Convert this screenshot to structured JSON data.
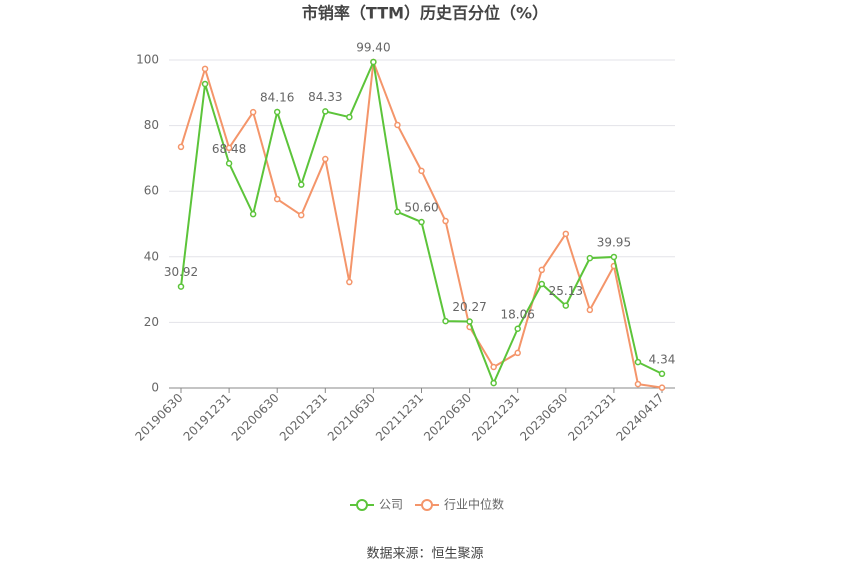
{
  "chart_data": {
    "type": "line",
    "title": "市销率（TTM）历史百分位（%）",
    "categories": [
      "20190630",
      null,
      "20191231",
      null,
      "20200630",
      null,
      "20201231",
      null,
      "20210630",
      null,
      "20211231",
      null,
      "20220630",
      null,
      "20221231",
      null,
      "20230630",
      null,
      "20231231",
      null,
      "20240417"
    ],
    "series": [
      {
        "name": "公司",
        "color": "#5cc43a",
        "values": [
          30.92,
          92.7,
          68.48,
          53,
          84.16,
          62,
          84.33,
          82.6,
          99.4,
          53.7,
          50.6,
          20.4,
          20.27,
          1.5,
          18.06,
          31.7,
          25.13,
          39.6,
          39.95,
          7.9,
          4.34
        ],
        "value_labels": [
          "30.92",
          null,
          "68.48",
          null,
          "84.16",
          null,
          "84.33",
          null,
          "99.40",
          null,
          "50.60",
          null,
          "20.27",
          null,
          "18.06",
          null,
          "25.13",
          null,
          "39.95",
          null,
          "4.34"
        ]
      },
      {
        "name": "行业中位数",
        "color": "#f4956a",
        "values": [
          73.5,
          97.3,
          73.2,
          84.1,
          57.6,
          52.7,
          69.8,
          32.3,
          99.4,
          80.2,
          66.2,
          50.9,
          18.6,
          6.4,
          10.7,
          36,
          47,
          23.8,
          37.2,
          1.2,
          0.1
        ]
      }
    ],
    "ylim": [
      0,
      100
    ],
    "yticks": [
      0,
      20,
      40,
      60,
      80,
      100
    ],
    "grid": true,
    "legend": "bottom",
    "source": "数据来源：恒生聚源"
  }
}
